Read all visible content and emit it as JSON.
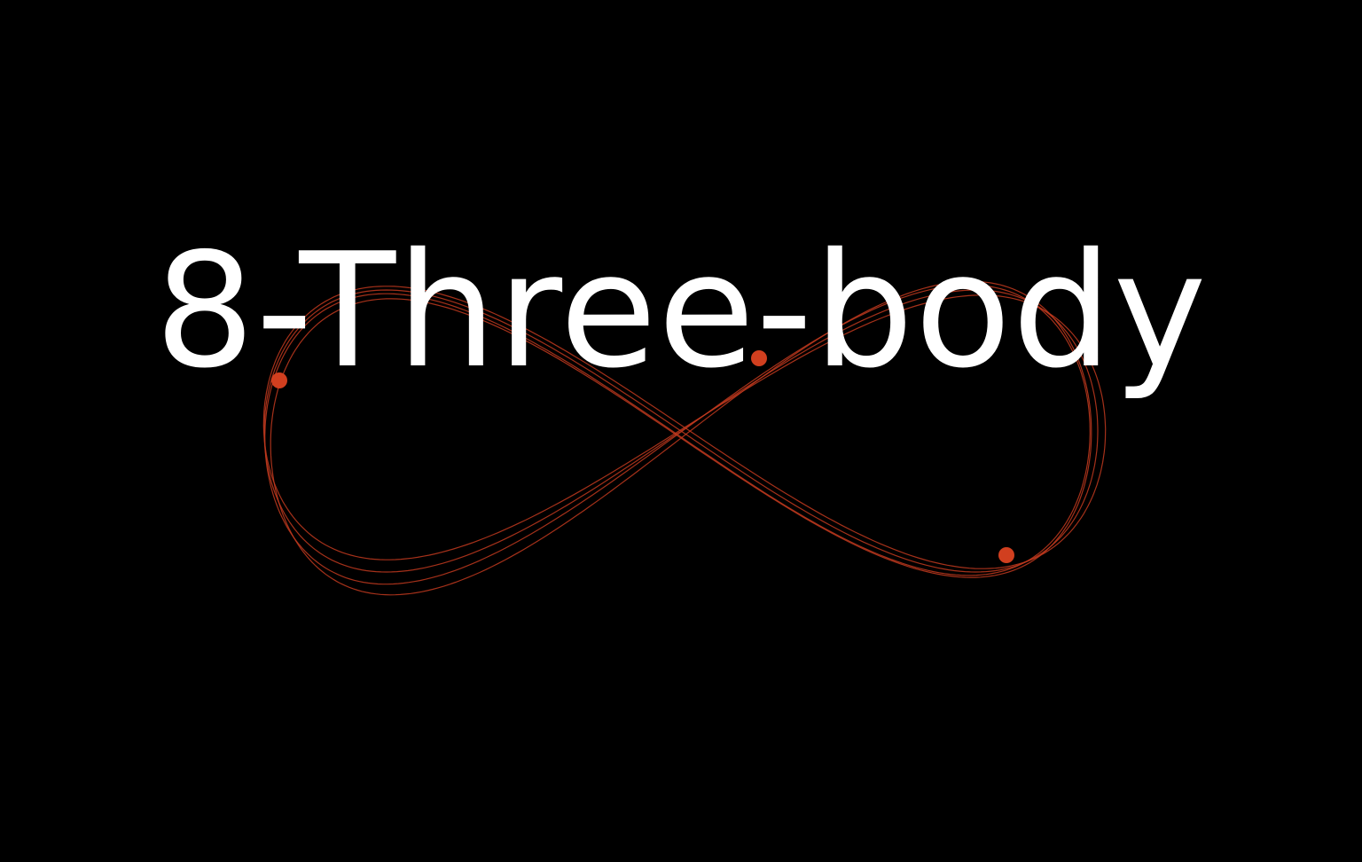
{
  "title": "8-Three-body",
  "colors": {
    "background": "#000000",
    "title": "#ffffff",
    "orbit": "#c23a1e",
    "body": "#d13f1f"
  },
  "simulation": {
    "body_count": 3,
    "trail_count": 4
  }
}
